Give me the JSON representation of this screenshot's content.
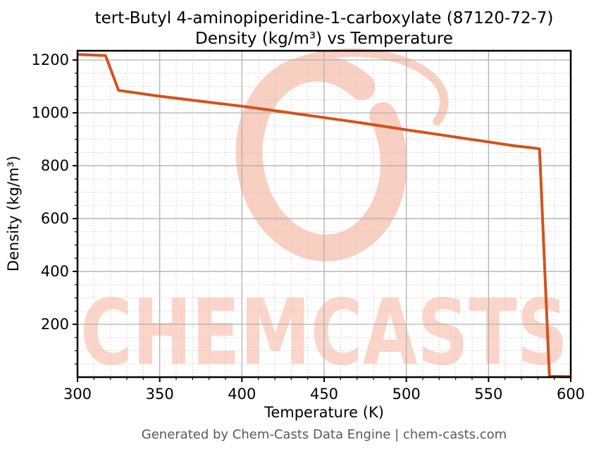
{
  "title": {
    "line1": "tert-Butyl 4-aminopiperidine-1-carboxylate (87120-72-7)",
    "line2": "Density (kg/m³) vs Temperature"
  },
  "footer": "Generated by Chem-Casts Data Engine | chem-casts.com",
  "watermark": {
    "text": "CHEMCASTS",
    "logo_icon": "chemcasts-c-swirl-icon"
  },
  "colors": {
    "line": "#d2531e",
    "watermark_text": "#fbd5c9",
    "watermark_swirl": "#f9cfc2",
    "grid_major": "#b0b0b0",
    "grid_minor": "#c9c9c9",
    "axis": "#000000",
    "footer_text": "#595959"
  },
  "chart_data": {
    "type": "line",
    "title": "tert-Butyl 4-aminopiperidine-1-carboxylate (87120-72-7) Density (kg/m³) vs Temperature",
    "xlabel": "Temperature (K)",
    "ylabel": "Density (kg/m³)",
    "xlim": [
      300,
      600
    ],
    "ylim": [
      0,
      1235
    ],
    "xticks_major": [
      300,
      350,
      400,
      450,
      500,
      550,
      600
    ],
    "x_minor_step": 10,
    "yticks_major": [
      200,
      400,
      600,
      800,
      1000,
      1200
    ],
    "y_minor_step": 50,
    "grid": "major solid + minor dotted",
    "legend": false,
    "series": [
      {
        "name": "Density",
        "color": "#d2531e",
        "x": [
          300,
          317,
          325,
          350,
          375,
          400,
          425,
          450,
          475,
          500,
          525,
          550,
          565,
          575,
          581,
          587,
          600
        ],
        "y": [
          1221,
          1217,
          1085,
          1063,
          1044,
          1025,
          1004,
          982,
          960,
          936,
          913,
          890,
          876,
          869,
          864,
          3,
          2
        ]
      }
    ],
    "notes": "solid phase ~300-317 K at ~1220, melt drop to ~1085 at ~325 K, liquid decline to ~864 at ~581 K, vaporization drop to ~2 near 587 K, gas to 600 K"
  }
}
